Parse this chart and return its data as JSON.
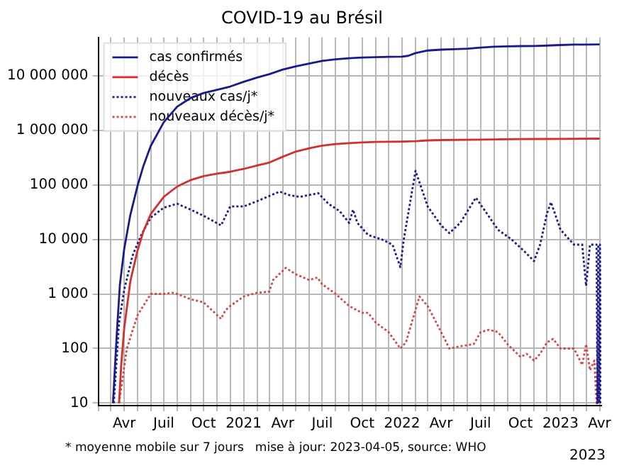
{
  "chart_data": {
    "type": "line",
    "title": "COVID-19 au Brésil",
    "log": "y",
    "grid": true,
    "legend": "top left",
    "marker": "none",
    "xlim": [
      "2020-02-01",
      "2023-04-05"
    ],
    "xticks": [
      {
        "value": "2020-02-01",
        "label": null
      },
      {
        "value": "2020-03-01",
        "label": null
      },
      {
        "value": "2020-04-01",
        "label": "Avr"
      },
      {
        "value": "2020-05-01",
        "label": null
      },
      {
        "value": "2020-06-01",
        "label": null
      },
      {
        "value": "2020-07-01",
        "label": "Juil"
      },
      {
        "value": "2020-08-01",
        "label": null
      },
      {
        "value": "2020-09-01",
        "label": null
      },
      {
        "value": "2020-10-01",
        "label": "Oct"
      },
      {
        "value": "2020-11-01",
        "label": null
      },
      {
        "value": "2020-12-01",
        "label": null
      },
      {
        "value": "2021-01-01",
        "label": "2021"
      },
      {
        "value": "2021-02-01",
        "label": null
      },
      {
        "value": "2021-03-01",
        "label": null
      },
      {
        "value": "2021-04-01",
        "label": "Avr"
      },
      {
        "value": "2021-05-01",
        "label": null
      },
      {
        "value": "2021-06-01",
        "label": null
      },
      {
        "value": "2021-07-01",
        "label": "Juil"
      },
      {
        "value": "2021-08-01",
        "label": null
      },
      {
        "value": "2021-09-01",
        "label": null
      },
      {
        "value": "2021-10-01",
        "label": "Oct"
      },
      {
        "value": "2021-11-01",
        "label": null
      },
      {
        "value": "2021-12-01",
        "label": null
      },
      {
        "value": "2022-01-01",
        "label": "2022"
      },
      {
        "value": "2022-02-01",
        "label": null
      },
      {
        "value": "2022-03-01",
        "label": null
      },
      {
        "value": "2022-04-01",
        "label": "Avr"
      },
      {
        "value": "2022-05-01",
        "label": null
      },
      {
        "value": "2022-06-01",
        "label": null
      },
      {
        "value": "2022-07-01",
        "label": "Juil"
      },
      {
        "value": "2022-08-01",
        "label": null
      },
      {
        "value": "2022-09-01",
        "label": null
      },
      {
        "value": "2022-10-01",
        "label": "Oct"
      },
      {
        "value": "2022-11-01",
        "label": null
      },
      {
        "value": "2022-12-01",
        "label": null
      },
      {
        "value": "2023-01-01",
        "label": "2023"
      },
      {
        "value": "2023-02-01",
        "label": null
      },
      {
        "value": "2023-03-01",
        "label": null
      },
      {
        "value": "2023-04-01",
        "label": "Avr"
      }
    ],
    "ylim": [
      9,
      50000000
    ],
    "yticks": [
      10,
      100,
      {
        "value": 1000,
        "label": "1 000"
      },
      {
        "value": 10000,
        "label": "10 000"
      },
      {
        "value": 100000,
        "label": "100 000"
      },
      {
        "value": 1000000,
        "label": "1 000 000"
      },
      {
        "value": 10000000,
        "label": "10 000 000"
      }
    ],
    "annotations": [
      "* moyenne mobile sur 7 jours",
      "mise à jour: 2023-04-05, source: WHO",
      "2023"
    ],
    "series": [
      {
        "name": "cas confirmés",
        "color": "#1a1a8c",
        "line_style": "solid",
        "x": [
          "2020-03-06",
          "2020-03-15",
          "2020-03-22",
          "2020-04-01",
          "2020-04-15",
          "2020-05-01",
          "2020-05-15",
          "2020-06-01",
          "2020-07-01",
          "2020-08-01",
          "2020-09-01",
          "2020-10-01",
          "2020-11-01",
          "2020-12-01",
          "2021-01-01",
          "2021-02-01",
          "2021-03-01",
          "2021-04-01",
          "2021-05-01",
          "2021-06-01",
          "2021-07-01",
          "2021-08-01",
          "2021-09-01",
          "2021-10-01",
          "2021-11-01",
          "2021-12-01",
          "2022-01-01",
          "2022-01-15",
          "2022-02-01",
          "2022-03-01",
          "2022-04-01",
          "2022-05-01",
          "2022-06-01",
          "2022-07-01",
          "2022-08-01",
          "2022-09-01",
          "2022-10-01",
          "2022-11-01",
          "2022-12-01",
          "2023-01-01",
          "2023-02-01",
          "2023-03-01",
          "2023-04-01"
        ],
        "values": [
          10,
          200,
          1500,
          6800,
          28000,
          92000,
          220000,
          515000,
          1400000,
          2700000,
          3900000,
          4800000,
          5500000,
          6300000,
          7700000,
          9200000,
          10600000,
          12900000,
          14700000,
          16600000,
          18600000,
          19900000,
          20800000,
          21400000,
          21800000,
          22100000,
          22300000,
          23000000,
          25800000,
          28800000,
          29900000,
          30500000,
          31200000,
          32600000,
          33800000,
          34400000,
          34700000,
          34900000,
          35500000,
          36300000,
          36900000,
          37100000,
          37200000
        ]
      },
      {
        "name": "décès",
        "color": "#d03030",
        "line_style": "solid",
        "x": [
          "2020-03-20",
          "2020-03-25",
          "2020-04-01",
          "2020-04-15",
          "2020-05-01",
          "2020-05-15",
          "2020-06-01",
          "2020-07-01",
          "2020-08-01",
          "2020-09-01",
          "2020-10-01",
          "2020-11-01",
          "2020-12-01",
          "2021-01-01",
          "2021-02-01",
          "2021-03-01",
          "2021-04-01",
          "2021-05-01",
          "2021-06-01",
          "2021-07-01",
          "2021-08-01",
          "2021-09-01",
          "2021-10-01",
          "2021-11-01",
          "2021-12-01",
          "2022-01-01",
          "2022-02-01",
          "2022-03-01",
          "2022-04-01",
          "2022-07-01",
          "2022-10-01",
          "2023-01-01",
          "2023-04-01"
        ],
        "values": [
          10,
          50,
          240,
          1700,
          6000,
          14000,
          29000,
          60000,
          93000,
          122000,
          144000,
          160000,
          173000,
          195000,
          225000,
          255000,
          325000,
          405000,
          465000,
          520000,
          557000,
          580000,
          597000,
          608000,
          615000,
          619000,
          630000,
          650000,
          660000,
          672000,
          686000,
          693000,
          700000
        ]
      },
      {
        "name": "nouveaux cas/j*",
        "color": "#1a1a8c",
        "line_style": "dotted",
        "x": [
          "2020-03-08",
          "2020-03-20",
          "2020-04-01",
          "2020-04-20",
          "2020-05-10",
          "2020-06-01",
          "2020-07-01",
          "2020-08-01",
          "2020-09-01",
          "2020-10-01",
          "2020-11-10",
          "2020-12-01",
          "2021-01-01",
          "2021-02-01",
          "2021-03-25",
          "2021-04-15",
          "2021-05-10",
          "2021-06-22",
          "2021-07-15",
          "2021-08-10",
          "2021-09-01",
          "2021-09-10",
          "2021-09-20",
          "2021-10-15",
          "2021-11-15",
          "2021-12-10",
          "2021-12-28",
          "2022-01-05",
          "2022-02-01",
          "2022-03-01",
          "2022-04-01",
          "2022-04-20",
          "2022-05-15",
          "2022-06-20",
          "2022-07-15",
          "2022-08-10",
          "2022-09-10",
          "2022-10-10",
          "2022-11-01",
          "2022-11-15",
          "2022-12-01",
          "2022-12-10",
          "2023-01-01",
          "2023-02-01",
          "2023-02-20",
          "2023-03-01",
          "2023-03-10",
          "2023-03-20",
          "2023-03-25",
          "2023-03-27",
          "2023-03-29",
          "2023-03-31",
          "2023-04-02",
          "2023-04-04"
        ],
        "values": [
          10,
          300,
          1200,
          5000,
          12000,
          25000,
          38000,
          45000,
          35000,
          27000,
          18000,
          40000,
          40000,
          50000,
          75000,
          65000,
          60000,
          70000,
          45000,
          33000,
          20000,
          35000,
          20000,
          12000,
          10000,
          8000,
          3100,
          10000,
          180000,
          40000,
          18000,
          13000,
          20000,
          58000,
          30000,
          15000,
          10000,
          6000,
          4000,
          8000,
          30000,
          48000,
          15000,
          8000,
          8000,
          1400,
          8000,
          8000,
          8000,
          10,
          8000,
          10,
          8000,
          10
        ]
      },
      {
        "name": "nouveaux décès/j*",
        "color": "#d04848",
        "line_style": "dotted",
        "x": [
          "2020-03-20",
          "2020-04-07",
          "2020-05-01",
          "2020-06-01",
          "2020-07-01",
          "2020-07-20",
          "2020-08-01",
          "2020-09-01",
          "2020-10-01",
          "2020-11-10",
          "2020-11-20",
          "2020-12-01",
          "2021-01-01",
          "2021-02-01",
          "2021-03-01",
          "2021-03-10",
          "2021-04-08",
          "2021-05-01",
          "2021-06-01",
          "2021-06-20",
          "2021-07-01",
          "2021-08-01",
          "2021-09-01",
          "2021-10-01",
          "2021-10-15",
          "2021-11-01",
          "2021-12-01",
          "2021-12-28",
          "2022-01-10",
          "2022-02-10",
          "2022-03-01",
          "2022-04-01",
          "2022-04-20",
          "2022-05-15",
          "2022-06-15",
          "2022-07-01",
          "2022-07-20",
          "2022-08-10",
          "2022-09-01",
          "2022-10-01",
          "2022-10-15",
          "2022-11-01",
          "2022-11-15",
          "2022-12-01",
          "2022-12-15",
          "2023-01-01",
          "2023-02-01",
          "2023-02-20",
          "2023-03-01",
          "2023-03-10",
          "2023-03-20",
          "2023-03-25",
          "2023-04-01"
        ],
        "values": [
          10,
          100,
          400,
          1000,
          1000,
          1050,
          1000,
          800,
          700,
          350,
          500,
          600,
          900,
          1050,
          1100,
          1800,
          3000,
          2300,
          1800,
          2000,
          1500,
          1000,
          600,
          450,
          450,
          300,
          200,
          100,
          130,
          900,
          600,
          200,
          100,
          110,
          120,
          200,
          220,
          200,
          120,
          70,
          80,
          60,
          80,
          130,
          150,
          100,
          100,
          50,
          120,
          40,
          60,
          10,
          10
        ]
      }
    ]
  }
}
